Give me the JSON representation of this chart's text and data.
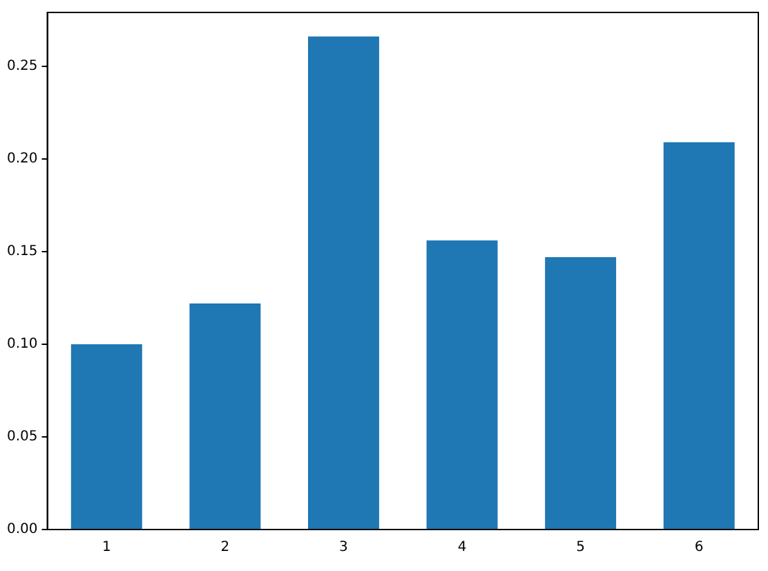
{
  "chart_data": {
    "type": "bar",
    "categories": [
      "1",
      "2",
      "3",
      "4",
      "5",
      "6"
    ],
    "values": [
      0.1,
      0.122,
      0.266,
      0.156,
      0.147,
      0.209
    ],
    "color": "#1f77b4",
    "ylim": [
      0,
      0.279
    ],
    "yticks": [
      {
        "value": 0,
        "label": "0.00"
      },
      {
        "value": 0.05,
        "label": "0.05"
      },
      {
        "value": 0.1,
        "label": "0.10"
      },
      {
        "value": 0.15,
        "label": "0.15"
      },
      {
        "value": 0.2,
        "label": "0.20"
      },
      {
        "value": 0.25,
        "label": "0.25"
      }
    ],
    "grid": false,
    "legend": false
  }
}
